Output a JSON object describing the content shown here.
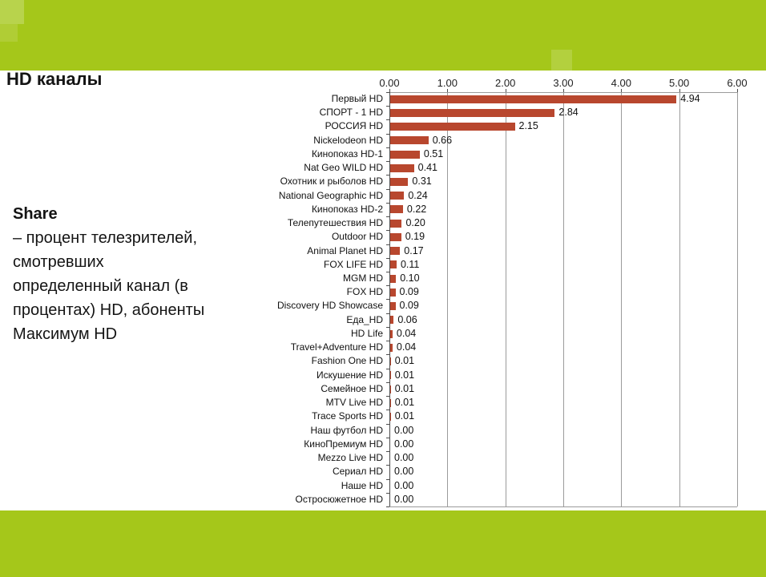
{
  "slide": {
    "title": "HD каналы",
    "share_label": "Share",
    "share_text": "– процент телезрителей,\nсмотревших\nопределенный канал (в\nпроцентах) HD, абоненты\nМаксимум HD"
  },
  "colors": {
    "band_green": "#a5c71a",
    "bar_red": "#b8472e",
    "gridline_gray": "#9b9b9b"
  },
  "chart_data": {
    "type": "bar",
    "orientation": "horizontal",
    "title": "",
    "xlabel": "",
    "ylabel": "",
    "xlim": [
      0,
      6
    ],
    "x_ticks": [
      "0.00",
      "1.00",
      "2.00",
      "3.00",
      "4.00",
      "5.00",
      "6.00"
    ],
    "axis_position": "top",
    "grid": true,
    "legend": false,
    "categories": [
      "Первый HD",
      "СПОРТ - 1 HD",
      "РОССИЯ HD",
      "Nickelodeon HD",
      "Кинопоказ HD-1",
      "Nat Geo WILD  HD",
      "Охотник и рыболов HD",
      "National Geographic HD",
      "Кинопоказ HD-2",
      "Телепутешествия HD",
      "Outdoor HD",
      "Animal Planet HD",
      "FOX LIFE HD",
      "MGM HD",
      "FOX HD",
      "Discovery HD Showcase",
      "Еда_HD",
      "HD Life",
      "Travel+Adventure HD",
      "Fashion One HD",
      "Искушение HD",
      "Семейное HD",
      "MTV Live HD",
      "Trace Sports HD",
      "Наш футбол HD",
      "КиноПремиум HD",
      "Mezzo Live HD",
      "Сериал HD",
      "Наше HD",
      "Остросюжетное HD"
    ],
    "values": [
      4.94,
      2.84,
      2.15,
      0.66,
      0.51,
      0.41,
      0.31,
      0.24,
      0.22,
      0.2,
      0.19,
      0.17,
      0.11,
      0.1,
      0.09,
      0.09,
      0.06,
      0.04,
      0.04,
      0.01,
      0.01,
      0.01,
      0.01,
      0.01,
      0.0,
      0.0,
      0.0,
      0.0,
      0.0,
      0.0
    ],
    "value_labels": [
      "4.94",
      "2.84",
      "2.15",
      "0.66",
      "0.51",
      "0.41",
      "0.31",
      "0.24",
      "0.22",
      "0.20",
      "0.19",
      "0.17",
      "0.11",
      "0.10",
      "0.09",
      "0.09",
      "0.06",
      "0.04",
      "0.04",
      "0.01",
      "0.01",
      "0.01",
      "0.01",
      "0.01",
      "0.00",
      "0.00",
      "0.00",
      "0.00",
      "0.00",
      "0.00"
    ]
  }
}
